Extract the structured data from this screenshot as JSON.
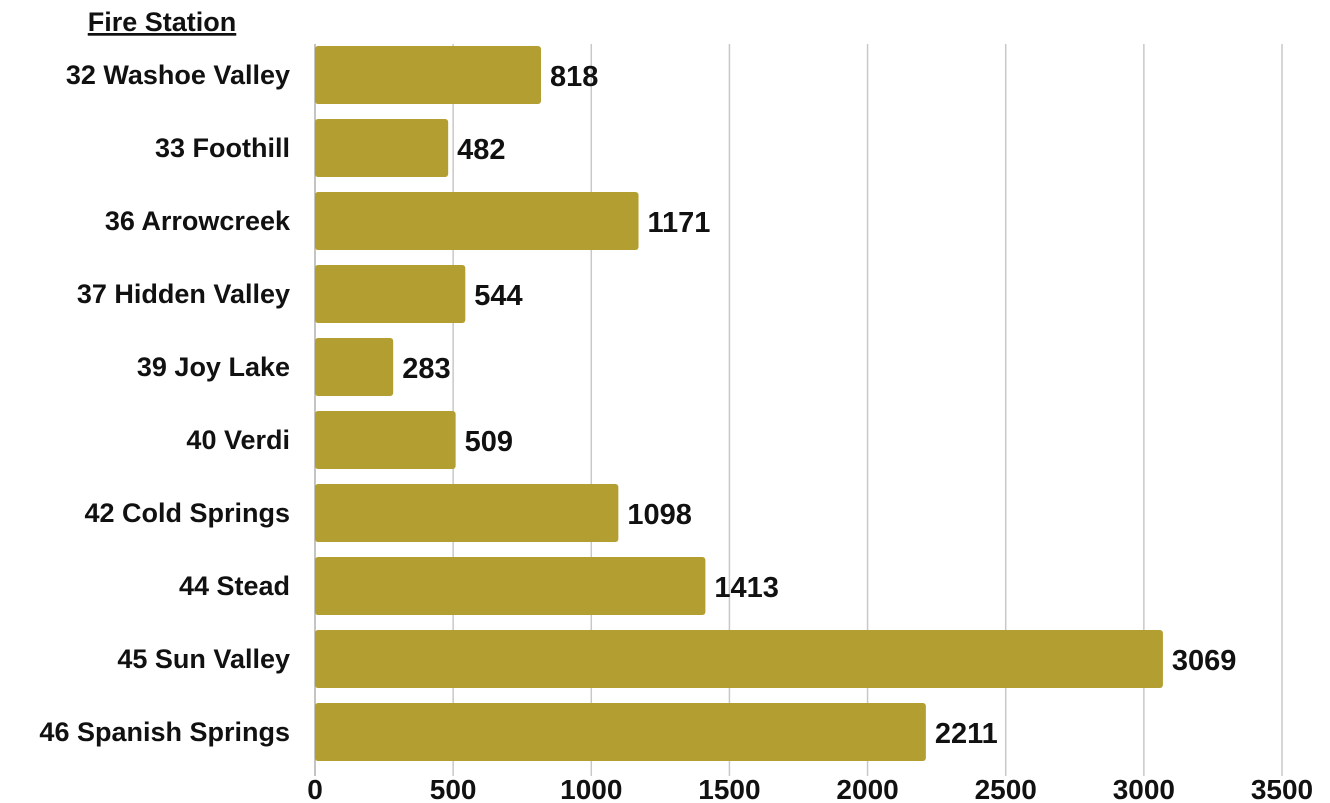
{
  "chart_data": {
    "type": "bar",
    "orientation": "horizontal",
    "title": "Fire Station",
    "categories": [
      "32 Washoe Valley",
      "33 Foothill",
      "36 Arrowcreek",
      "37 Hidden Valley",
      "39 Joy Lake",
      "40 Verdi",
      "42 Cold Springs",
      "44 Stead",
      "45 Sun Valley",
      "46 Spanish Springs"
    ],
    "values": [
      818,
      482,
      1171,
      544,
      283,
      509,
      1098,
      1413,
      3069,
      2211
    ],
    "xlim": [
      0,
      3500
    ],
    "xticks": [
      "0",
      "500",
      "1000",
      "1500",
      "2000",
      "2500",
      "3000",
      "3500"
    ],
    "grid": true,
    "bar_color": "#b39e32",
    "xlabel": "",
    "ylabel": ""
  }
}
